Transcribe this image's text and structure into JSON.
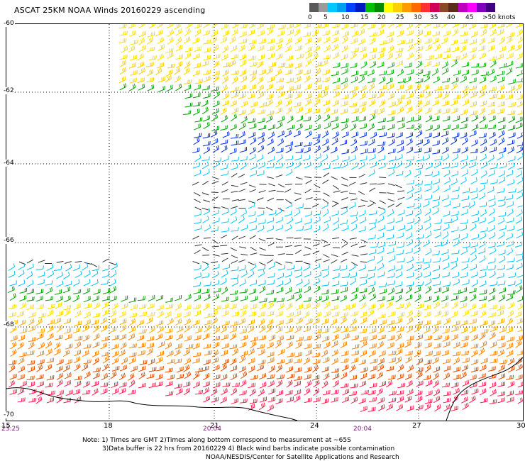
{
  "title": "ASCAT 25KM NOAA Winds 20160229 ascending",
  "legend": {
    "colors": [
      "#5a5a5a",
      "#9a9a9a",
      "#00c8ff",
      "#00a0f0",
      "#0040ff",
      "#0018c0",
      "#00c000",
      "#008a00",
      "#ffff00",
      "#ffd000",
      "#ff9a00",
      "#ff6a00",
      "#ff3030",
      "#d0005a",
      "#8a4a2a",
      "#5a2a1a",
      "#c000c0",
      "#ff00ff",
      "#8000c0",
      "#400080"
    ],
    "labels": [
      "0",
      "5",
      "10",
      "15",
      "20",
      "25",
      "30",
      "35",
      "40",
      "45",
      ">50 knots"
    ]
  },
  "latitudes": [
    "-60",
    "-62",
    "-64",
    "-66",
    "-68",
    "-70"
  ],
  "longitudes": [
    "15",
    "18",
    "21",
    "24",
    "27",
    "30"
  ],
  "times": [
    "23:25",
    "20:04",
    "20:04"
  ],
  "notes": [
    "Note: 1) Times are GMT 2)Times along bottom correspond to measurement at ~65S",
    "3)Data buffer is 22 hrs from 20160229 4) Black wind barbs indicate possible contamination",
    "NOAA/NESDIS/Center for Satellite Applications and Research"
  ]
}
